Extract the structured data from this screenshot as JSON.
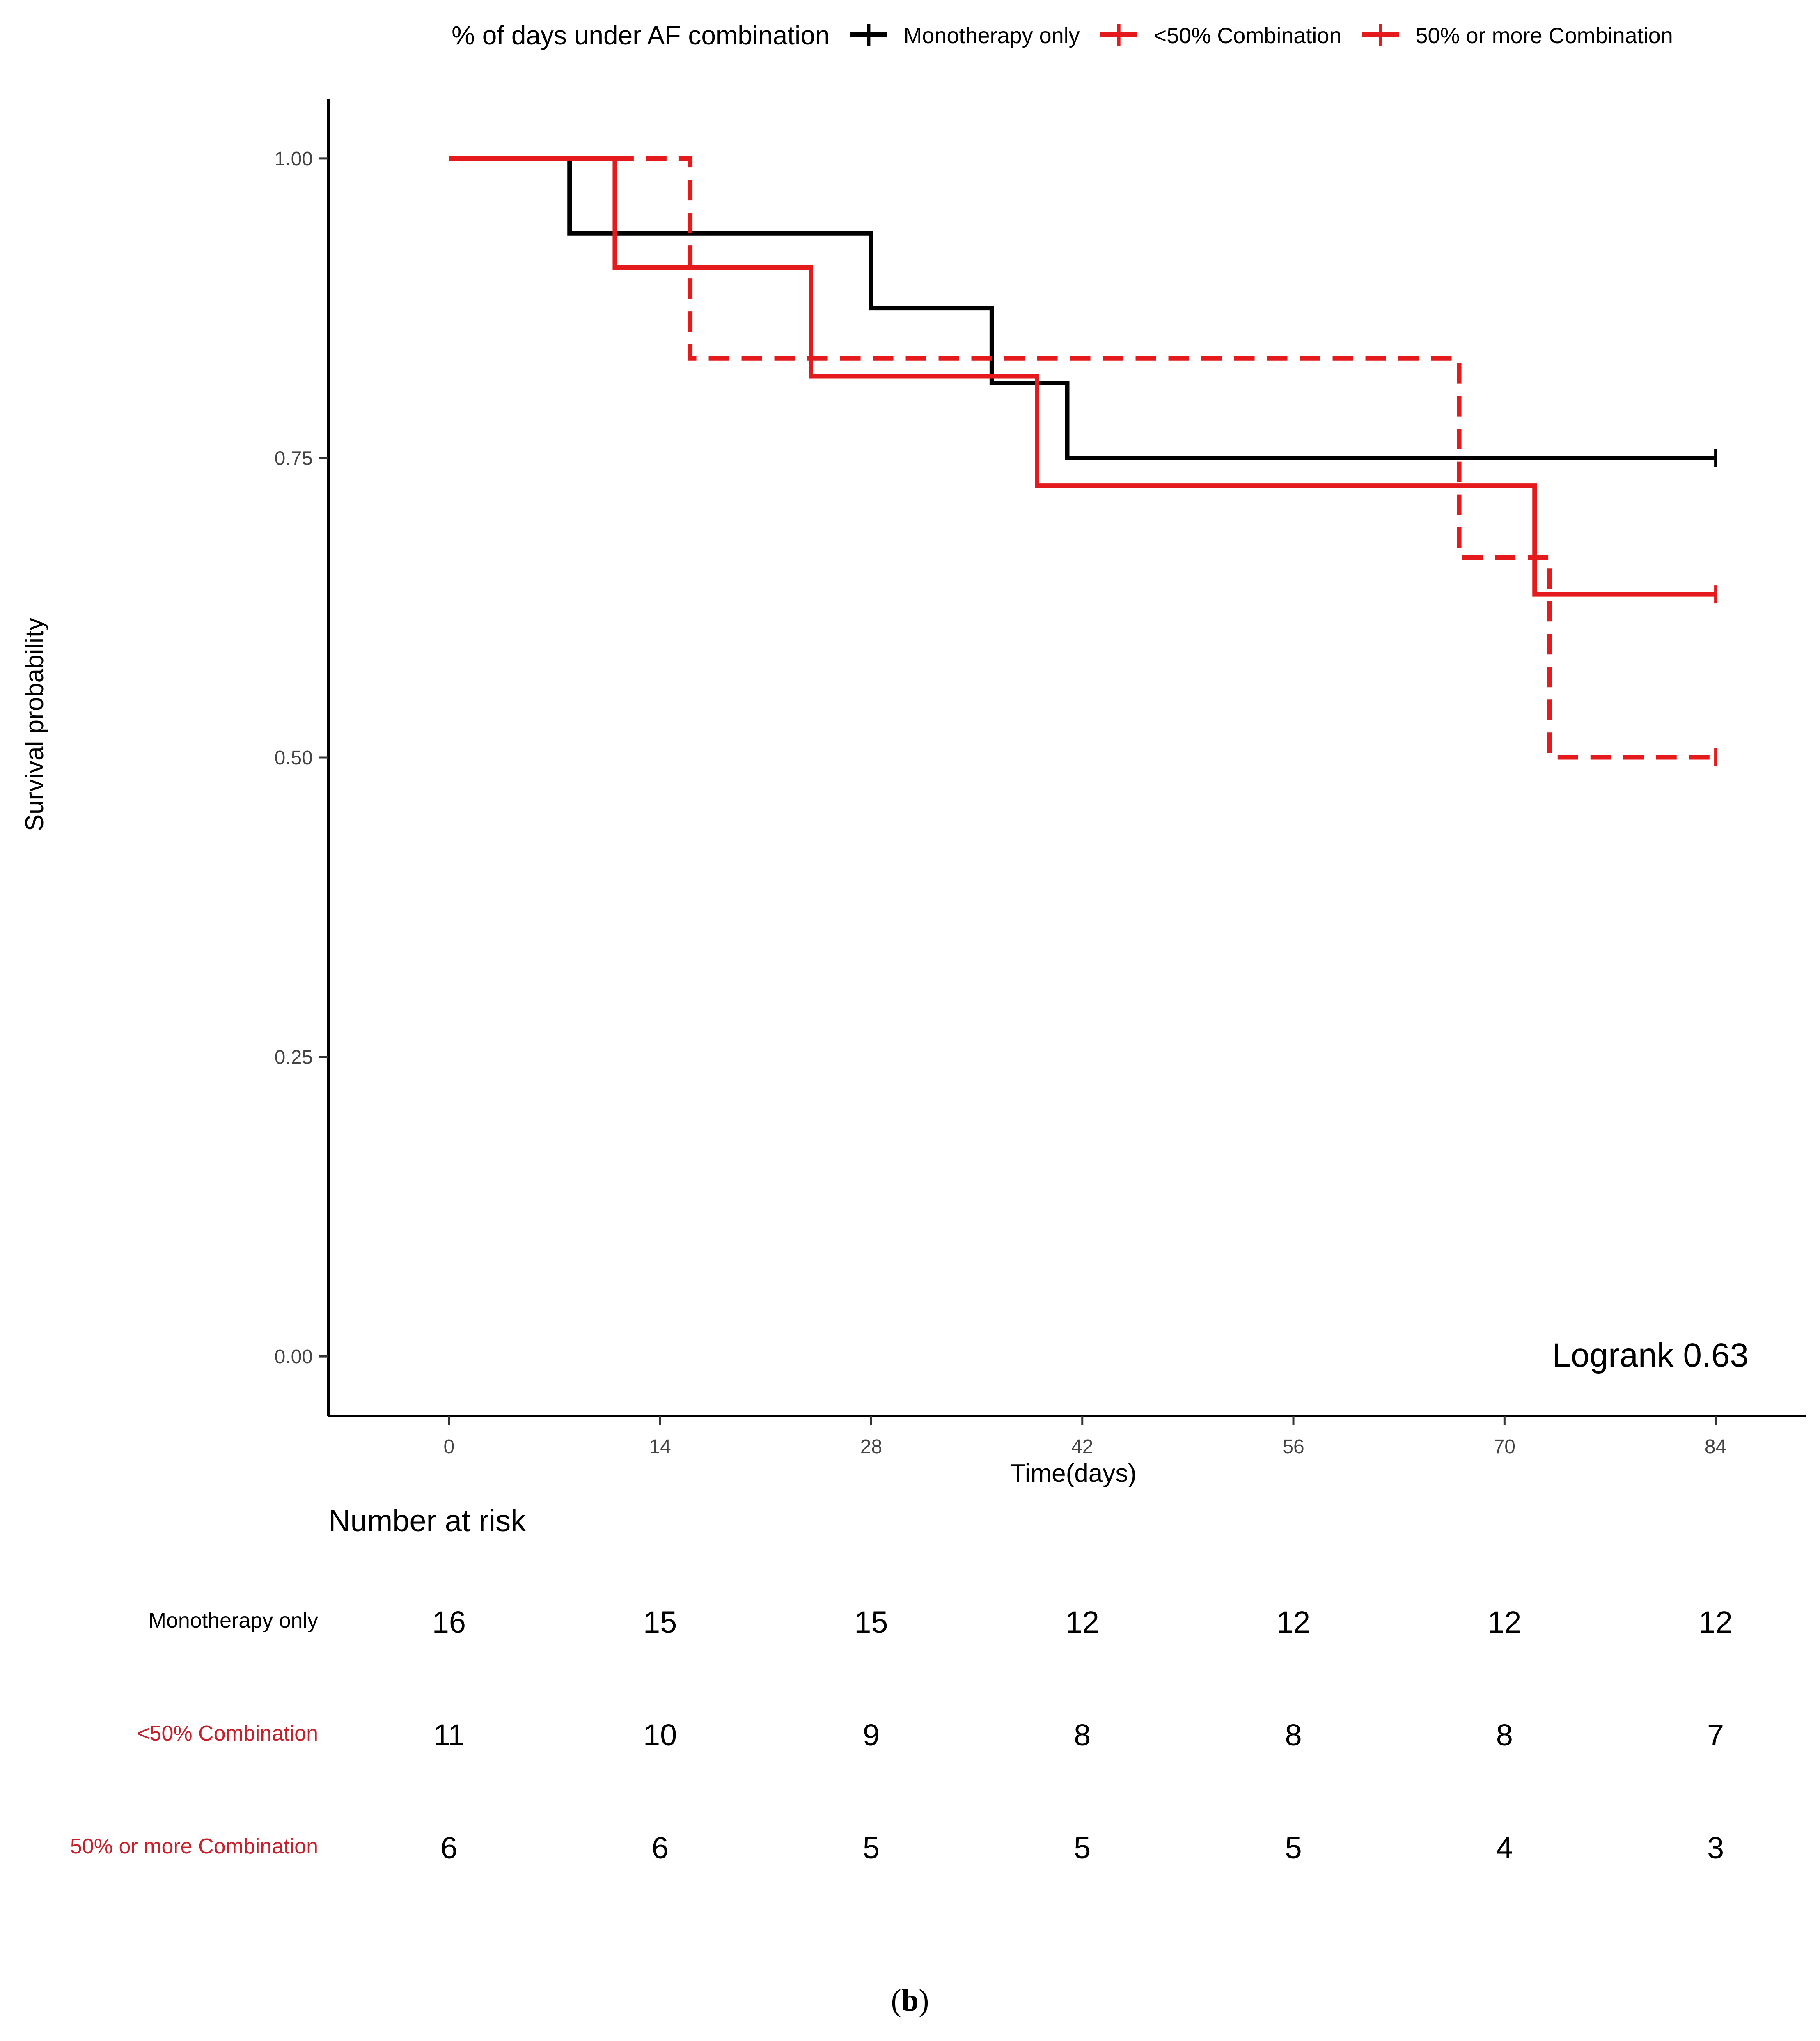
{
  "chart_data": {
    "type": "line",
    "subtype": "kaplan-meier step curve",
    "legend_title": "% of days under AF combination",
    "legend_position": "top",
    "xlabel": "Time(days)",
    "ylabel": "Survival probability",
    "xlim": [
      -8,
      90
    ],
    "ylim": [
      -0.05,
      1.05
    ],
    "xticks": [
      0,
      14,
      28,
      42,
      56,
      70,
      84
    ],
    "yticks": [
      0.0,
      0.25,
      0.5,
      0.75,
      1.0
    ],
    "ytick_labels": [
      "0.00",
      "0.25",
      "0.50",
      "0.75",
      "1.00"
    ],
    "grid": false,
    "series": [
      {
        "name": "Monotherapy only",
        "color": "#000000",
        "linestyle": "solid",
        "x": [
          0,
          8,
          28,
          36,
          41,
          84
        ],
        "y": [
          1.0,
          0.9375,
          0.875,
          0.8125,
          0.75,
          0.75
        ],
        "censor_x": [
          84
        ]
      },
      {
        "name": "<50% Combination",
        "color": "#e41a1c",
        "linestyle": "solid",
        "x": [
          0,
          11,
          24,
          39,
          72,
          84
        ],
        "y": [
          1.0,
          0.909,
          0.818,
          0.727,
          0.636,
          0.636
        ],
        "censor_x": [
          84
        ]
      },
      {
        "name": "50% or more Combination",
        "color": "#e41a1c",
        "linestyle": "dashed",
        "x": [
          0,
          16,
          67,
          73,
          84
        ],
        "y": [
          1.0,
          0.833,
          0.667,
          0.5,
          0.5
        ],
        "censor_x": [
          84
        ]
      }
    ],
    "annotation": "Logrank 0.63",
    "risk_table": {
      "title": "Number at risk",
      "times": [
        0,
        14,
        28,
        42,
        56,
        70,
        84
      ],
      "rows": [
        {
          "name": "Monotherapy only",
          "color": "#000000",
          "values": [
            16,
            15,
            15,
            12,
            12,
            12,
            12
          ]
        },
        {
          "name": "<50% Combination",
          "color": "#c8202a",
          "values": [
            11,
            10,
            9,
            8,
            8,
            8,
            7
          ]
        },
        {
          "name": "50% or more Combination",
          "color": "#c8202a",
          "values": [
            6,
            6,
            5,
            5,
            5,
            4,
            3
          ]
        }
      ]
    }
  },
  "caption": {
    "open": "(",
    "letter": "b",
    "close": ")"
  }
}
